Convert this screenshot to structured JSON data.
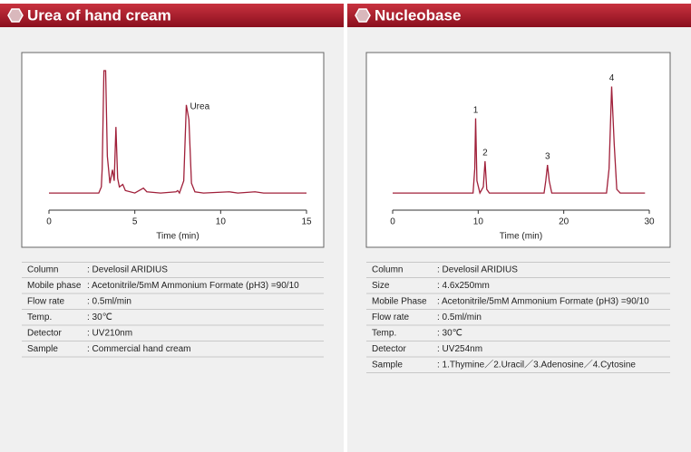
{
  "chart_data": [
    {
      "type": "line",
      "xlabel": "Time (min)",
      "xlim": [
        0,
        15
      ],
      "xticks": [
        0,
        5,
        10,
        15
      ],
      "ylim": [
        -14,
        100
      ],
      "series": [
        {
          "color": "#a0203a",
          "x": [
            0,
            2.9,
            3.05,
            3.1,
            3.2,
            3.3,
            3.4,
            3.55,
            3.7,
            3.8,
            3.9,
            4.0,
            4.1,
            4.3,
            4.45,
            5.0,
            5.5,
            5.7,
            6.5,
            7.4,
            7.5,
            7.6,
            7.85,
            8.0,
            8.15,
            8.3,
            8.5,
            9,
            10.5,
            11,
            12,
            12.5,
            15
          ],
          "values": [
            0,
            0,
            5,
            20,
            100,
            100,
            30,
            8,
            19,
            10,
            54,
            12,
            5,
            7,
            2,
            0,
            4,
            1,
            0,
            1,
            2,
            0,
            10,
            72,
            60,
            8,
            1,
            0,
            1,
            0,
            1,
            0,
            0
          ]
        }
      ],
      "annotations": [
        {
          "text": "Urea",
          "x": 8.0
        }
      ]
    },
    {
      "type": "line",
      "xlabel": "Time (min)",
      "xlim": [
        0,
        30
      ],
      "xticks": [
        0,
        10,
        20,
        30
      ],
      "ylim": [
        -14,
        100
      ],
      "series": [
        {
          "color": "#a0203a",
          "x": [
            0,
            9.4,
            9.6,
            9.7,
            9.85,
            10.2,
            10.6,
            10.8,
            11.0,
            11.3,
            17.7,
            17.9,
            18.1,
            18.3,
            18.6,
            25.0,
            25.3,
            25.6,
            25.9,
            26.2,
            26.6,
            29.5
          ],
          "values": [
            0,
            0,
            20,
            61,
            10,
            0,
            5,
            26,
            3,
            0,
            0,
            10,
            23,
            10,
            0,
            0,
            20,
            87,
            40,
            3,
            0,
            0
          ]
        }
      ],
      "annotations": [
        {
          "text": "1",
          "x": 9.7
        },
        {
          "text": "2",
          "x": 10.8
        },
        {
          "text": "3",
          "x": 18.1
        },
        {
          "text": "4",
          "x": 25.6
        }
      ]
    }
  ],
  "panels": [
    {
      "title": "Urea of hand cream",
      "rows": [
        [
          "Column",
          ": Develosil ARIDIUS"
        ],
        [
          "Mobile phase",
          ": Acetonitrile/5mM Ammonium Formate (pH3) =90/10"
        ],
        [
          "Flow rate",
          ": 0.5ml/min"
        ],
        [
          "Temp.",
          ": 30℃"
        ],
        [
          "Detector",
          ": UV210nm"
        ],
        [
          "Sample",
          ": Commercial hand cream"
        ]
      ]
    },
    {
      "title": "Nucleobase",
      "rows": [
        [
          "Column",
          ": Develosil ARIDIUS"
        ],
        [
          "Size",
          ": 4.6x250mm"
        ],
        [
          "Mobile Phase",
          ": Acetonitrile/5mM Ammonium Formate (pH3) =90/10"
        ],
        [
          "Flow rate",
          ": 0.5ml/min"
        ],
        [
          "Temp.",
          ": 30℃"
        ],
        [
          "Detector",
          ": UV254nm"
        ],
        [
          "Sample",
          ": 1.Thymine／2.Uracil／3.Adenosine／4.Cytosine"
        ]
      ]
    }
  ]
}
